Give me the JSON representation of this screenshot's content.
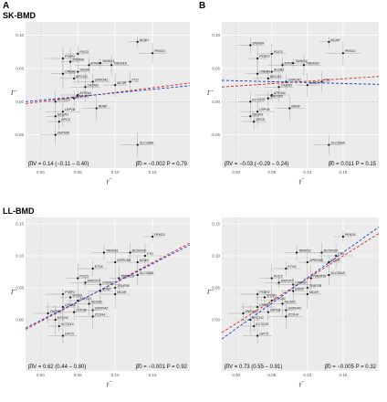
{
  "figure": {
    "panel_letters": [
      "A",
      "B"
    ],
    "row_titles": [
      "SK-BMD",
      "LL-BMD"
    ],
    "xlabel": "γ̂",
    "ylabel": "Γ̂"
  },
  "chart_data": [
    {
      "type": "scatter",
      "row": 0,
      "col": 0,
      "xlim": [
        -0.02,
        0.2
      ],
      "ylim": [
        -0.1,
        0.12
      ],
      "xticks": [
        "0.00",
        "0.05",
        "0.10",
        "0.15"
      ],
      "yticks": [
        "-0.05",
        "0.00",
        "0.05",
        "0.10"
      ],
      "annotation_left": "β̂IV = 0.14 (−0.11 – 0.40)",
      "annotation_right": "β̂0 = −0.002 P = 0.79",
      "grid": true,
      "lines": [
        {
          "color": "#d62728",
          "x": [
            -0.02,
            0.2
          ],
          "y": [
            -0.003,
            0.028
          ]
        },
        {
          "color": "#1f3fbf",
          "x": [
            -0.02,
            0.2
          ],
          "y": [
            0.0,
            0.024
          ]
        }
      ],
      "points": [
        {
          "label": "NCAH",
          "x": 0.13,
          "y": 0.09
        },
        {
          "label": "POC5",
          "x": 0.05,
          "y": 0.072
        },
        {
          "label": "PKKD1",
          "x": 0.15,
          "y": 0.073
        },
        {
          "label": "PTBP2",
          "x": 0.03,
          "y": 0.065
        },
        {
          "label": "ZNF608",
          "x": 0.04,
          "y": 0.06
        },
        {
          "label": "TANKA1",
          "x": 0.08,
          "y": 0.058
        },
        {
          "label": "ETV6",
          "x": 0.065,
          "y": 0.055
        },
        {
          "label": "TMEM18",
          "x": 0.095,
          "y": 0.055
        },
        {
          "label": "SH2B1",
          "x": 0.05,
          "y": 0.045
        },
        {
          "label": "CREB1",
          "x": 0.03,
          "y": 0.042
        },
        {
          "label": "MTCH2",
          "x": 0.045,
          "y": 0.035
        },
        {
          "label": "GNPDA2",
          "x": 0.07,
          "y": 0.03
        },
        {
          "label": "FTO",
          "x": 0.12,
          "y": 0.03
        },
        {
          "label": "MC4R",
          "x": 0.1,
          "y": 0.025
        },
        {
          "label": "CADM2",
          "x": 0.06,
          "y": 0.022
        },
        {
          "label": "ATP2A1",
          "x": 0.05,
          "y": 0.01
        },
        {
          "label": "MAP2K5",
          "x": 0.045,
          "y": 0.005
        },
        {
          "label": "KCTD15",
          "x": 0.02,
          "y": 0.0
        },
        {
          "label": "BDNF",
          "x": 0.075,
          "y": -0.01
        },
        {
          "label": "LRP1B",
          "x": 0.03,
          "y": -0.015
        },
        {
          "label": "NEGR1",
          "x": 0.02,
          "y": -0.022
        },
        {
          "label": "GPC5",
          "x": 0.025,
          "y": -0.03
        },
        {
          "label": "ZNF608",
          "x": 0.02,
          "y": -0.05
        },
        {
          "label": "SLC39A8",
          "x": 0.13,
          "y": -0.065
        }
      ]
    },
    {
      "type": "scatter",
      "row": 0,
      "col": 1,
      "xlim": [
        -0.02,
        0.2
      ],
      "ylim": [
        -0.1,
        0.12
      ],
      "xticks": [
        "0.00",
        "0.05",
        "0.10",
        "0.15"
      ],
      "yticks": [
        "-0.05",
        "0.00",
        "0.05",
        "0.10"
      ],
      "annotation_left": "β̂IV = −0.03 (−0.29 – 0.24)",
      "annotation_right": "β̂0 = 0.011 P = 0.15",
      "grid": true,
      "lines": [
        {
          "color": "#d62728",
          "x": [
            -0.02,
            0.2
          ],
          "y": [
            0.022,
            0.038
          ]
        },
        {
          "color": "#1f3fbf",
          "x": [
            -0.02,
            0.2
          ],
          "y": [
            0.032,
            0.026
          ]
        }
      ],
      "points": [
        {
          "label": "NCAH",
          "x": 0.13,
          "y": 0.09
        },
        {
          "label": "ZNF608",
          "x": 0.02,
          "y": 0.085
        },
        {
          "label": "POC5",
          "x": 0.05,
          "y": 0.072
        },
        {
          "label": "PKKD1",
          "x": 0.15,
          "y": 0.073
        },
        {
          "label": "PTBP2",
          "x": 0.03,
          "y": 0.065
        },
        {
          "label": "TANKA1",
          "x": 0.08,
          "y": 0.058
        },
        {
          "label": "ETV6",
          "x": 0.065,
          "y": 0.055
        },
        {
          "label": "TMEM18",
          "x": 0.095,
          "y": 0.055
        },
        {
          "label": "SH2B1",
          "x": 0.05,
          "y": 0.045
        },
        {
          "label": "CREB1",
          "x": 0.03,
          "y": 0.042
        },
        {
          "label": "MTCH2",
          "x": 0.045,
          "y": 0.035
        },
        {
          "label": "GNPDA2",
          "x": 0.07,
          "y": 0.03
        },
        {
          "label": "FTO",
          "x": 0.12,
          "y": 0.03
        },
        {
          "label": "MC4R",
          "x": 0.1,
          "y": 0.025
        },
        {
          "label": "CADM2",
          "x": 0.06,
          "y": 0.022
        },
        {
          "label": "ATP2A1",
          "x": 0.05,
          "y": 0.01
        },
        {
          "label": "MAP2K5",
          "x": 0.045,
          "y": 0.005
        },
        {
          "label": "KCTD15",
          "x": 0.02,
          "y": 0.0
        },
        {
          "label": "BDNF",
          "x": 0.075,
          "y": -0.01
        },
        {
          "label": "LRP1B",
          "x": 0.03,
          "y": -0.015
        },
        {
          "label": "NEGR1",
          "x": 0.02,
          "y": -0.022
        },
        {
          "label": "GPC5",
          "x": 0.025,
          "y": -0.03
        },
        {
          "label": "SLC39A8",
          "x": 0.13,
          "y": -0.065
        }
      ]
    },
    {
      "type": "scatter",
      "row": 1,
      "col": 0,
      "xlim": [
        -0.02,
        0.2
      ],
      "ylim": [
        -0.08,
        0.16
      ],
      "xticks": [
        "0.00",
        "0.05",
        "0.10",
        "0.15"
      ],
      "yticks": [
        "0.00",
        "0.05",
        "0.10",
        "0.15"
      ],
      "annotation_left": "β̂IV = 0.62 (0.44 – 0.80)",
      "annotation_right": "β̂0 = −0.001 P = 0.92",
      "grid": true,
      "lines": [
        {
          "color": "#d62728",
          "x": [
            -0.02,
            0.2
          ],
          "y": [
            -0.015,
            0.12
          ]
        },
        {
          "color": "#1f3fbf",
          "x": [
            -0.02,
            0.2
          ],
          "y": [
            -0.013,
            0.117
          ]
        }
      ],
      "points": [
        {
          "label": "PKKD1",
          "x": 0.15,
          "y": 0.13
        },
        {
          "label": "TANKA1",
          "x": 0.085,
          "y": 0.105
        },
        {
          "label": "BCDIN3D",
          "x": 0.12,
          "y": 0.105
        },
        {
          "label": "FTO",
          "x": 0.14,
          "y": 0.1
        },
        {
          "label": "GPRC5B",
          "x": 0.1,
          "y": 0.09
        },
        {
          "label": "NCAH",
          "x": 0.13,
          "y": 0.09
        },
        {
          "label": "ETV6",
          "x": 0.07,
          "y": 0.08
        },
        {
          "label": "SLC39A8",
          "x": 0.13,
          "y": 0.07
        },
        {
          "label": "TMEM18",
          "x": 0.105,
          "y": 0.065
        },
        {
          "label": "POC5",
          "x": 0.05,
          "y": 0.065
        },
        {
          "label": "MAP2K5",
          "x": 0.06,
          "y": 0.058
        },
        {
          "label": "CADM2",
          "x": 0.08,
          "y": 0.055
        },
        {
          "label": "TFAP2B",
          "x": 0.1,
          "y": 0.05
        },
        {
          "label": "BDNF",
          "x": 0.08,
          "y": 0.045
        },
        {
          "label": "MC4R",
          "x": 0.1,
          "y": 0.04
        },
        {
          "label": "PTBP2",
          "x": 0.03,
          "y": 0.04
        },
        {
          "label": "SH2B1",
          "x": 0.04,
          "y": 0.035
        },
        {
          "label": "ATP2A1",
          "x": 0.05,
          "y": 0.03
        },
        {
          "label": "NEGR1",
          "x": 0.065,
          "y": 0.025
        },
        {
          "label": "CREB1",
          "x": 0.03,
          "y": 0.02
        },
        {
          "label": "GNPDA2",
          "x": 0.07,
          "y": 0.015
        },
        {
          "label": "LRP1B",
          "x": 0.045,
          "y": 0.012
        },
        {
          "label": "ZNF608",
          "x": 0.01,
          "y": 0.01
        },
        {
          "label": "ZC3H4",
          "x": 0.07,
          "y": 0.005
        },
        {
          "label": "MTCH2",
          "x": 0.02,
          "y": 0.0
        },
        {
          "label": "KCTD15",
          "x": 0.025,
          "y": -0.01
        },
        {
          "label": "GPC5",
          "x": 0.03,
          "y": -0.025
        }
      ]
    },
    {
      "type": "scatter",
      "row": 1,
      "col": 1,
      "xlim": [
        -0.02,
        0.2
      ],
      "ylim": [
        -0.08,
        0.16
      ],
      "xticks": [
        "0.00",
        "0.05",
        "0.10",
        "0.15"
      ],
      "yticks": [
        "0.00",
        "0.05",
        "0.10",
        "0.15"
      ],
      "annotation_left": "β̂IV = 0.73 (0.55 – 0.91)",
      "annotation_right": "β̂0 = −0.005 P = 0.32",
      "grid": true,
      "lines": [
        {
          "color": "#d62728",
          "x": [
            -0.02,
            0.2
          ],
          "y": [
            -0.02,
            0.135
          ]
        },
        {
          "color": "#1f3fbf",
          "x": [
            -0.02,
            0.2
          ],
          "y": [
            -0.03,
            0.145
          ]
        }
      ],
      "points": [
        {
          "label": "PKKD1",
          "x": 0.15,
          "y": 0.13
        },
        {
          "label": "TANKA1",
          "x": 0.085,
          "y": 0.105
        },
        {
          "label": "BCDIN3D",
          "x": 0.12,
          "y": 0.105
        },
        {
          "label": "FTO",
          "x": 0.14,
          "y": 0.1
        },
        {
          "label": "GPRC5B",
          "x": 0.1,
          "y": 0.09
        },
        {
          "label": "NCAH",
          "x": 0.13,
          "y": 0.09
        },
        {
          "label": "ETV6",
          "x": 0.07,
          "y": 0.08
        },
        {
          "label": "SLC39A8",
          "x": 0.13,
          "y": 0.07
        },
        {
          "label": "TMEM18",
          "x": 0.105,
          "y": 0.065
        },
        {
          "label": "POC5",
          "x": 0.05,
          "y": 0.065
        },
        {
          "label": "MAP2K5",
          "x": 0.06,
          "y": 0.058
        },
        {
          "label": "CADM2",
          "x": 0.08,
          "y": 0.055
        },
        {
          "label": "TFAP2B",
          "x": 0.1,
          "y": 0.05
        },
        {
          "label": "BDNF",
          "x": 0.08,
          "y": 0.045
        },
        {
          "label": "MC4R",
          "x": 0.1,
          "y": 0.04
        },
        {
          "label": "PTBP2",
          "x": 0.03,
          "y": 0.04
        },
        {
          "label": "SH2B1",
          "x": 0.04,
          "y": 0.035
        },
        {
          "label": "ATP2A1",
          "x": 0.05,
          "y": 0.03
        },
        {
          "label": "NEGR1",
          "x": 0.065,
          "y": 0.025
        },
        {
          "label": "CREB1",
          "x": 0.03,
          "y": 0.02
        },
        {
          "label": "GNPDA2",
          "x": 0.07,
          "y": 0.015
        },
        {
          "label": "LRP1B",
          "x": 0.045,
          "y": 0.012
        },
        {
          "label": "ZNF608",
          "x": 0.01,
          "y": 0.01
        },
        {
          "label": "ZC3H4",
          "x": 0.07,
          "y": 0.005
        },
        {
          "label": "MTCH2",
          "x": 0.02,
          "y": 0.0
        },
        {
          "label": "KCTD15",
          "x": 0.025,
          "y": -0.01
        },
        {
          "label": "GPC5",
          "x": 0.03,
          "y": -0.025
        }
      ]
    }
  ]
}
